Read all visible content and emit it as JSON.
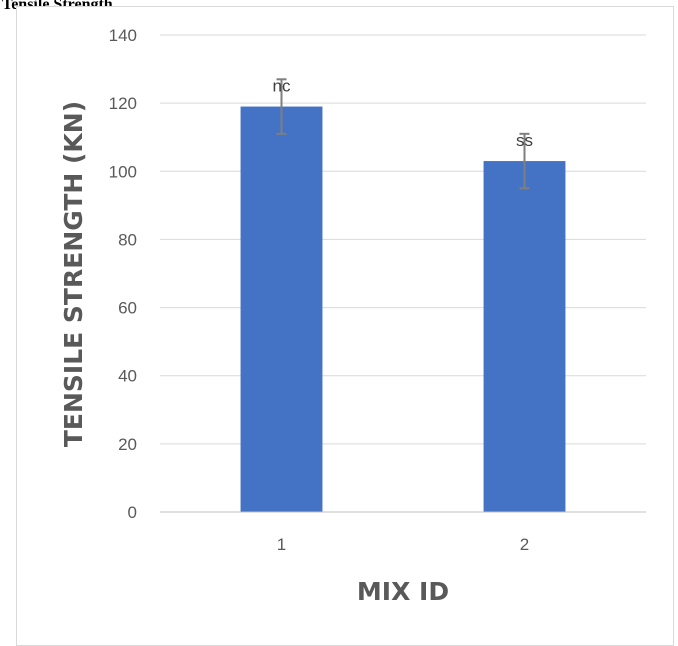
{
  "caption": "Tensile Strength",
  "chart_data": {
    "type": "bar",
    "categories": [
      "1",
      "2"
    ],
    "values": [
      119,
      103
    ],
    "errors": [
      8,
      8
    ],
    "data_labels": [
      "nc",
      "ss"
    ],
    "xlabel": "MIX ID",
    "ylabel": "TENSILE STRENGTH (KN)",
    "ylim": [
      0,
      140
    ],
    "yticks": [
      0,
      20,
      40,
      60,
      80,
      100,
      120,
      140
    ],
    "grid": true,
    "legend": "none",
    "colors": {
      "bar": "#4472c4",
      "grid": "#d9d9d9",
      "error_bar": "#7f7f7f",
      "axis": "#bfbfbf"
    }
  }
}
